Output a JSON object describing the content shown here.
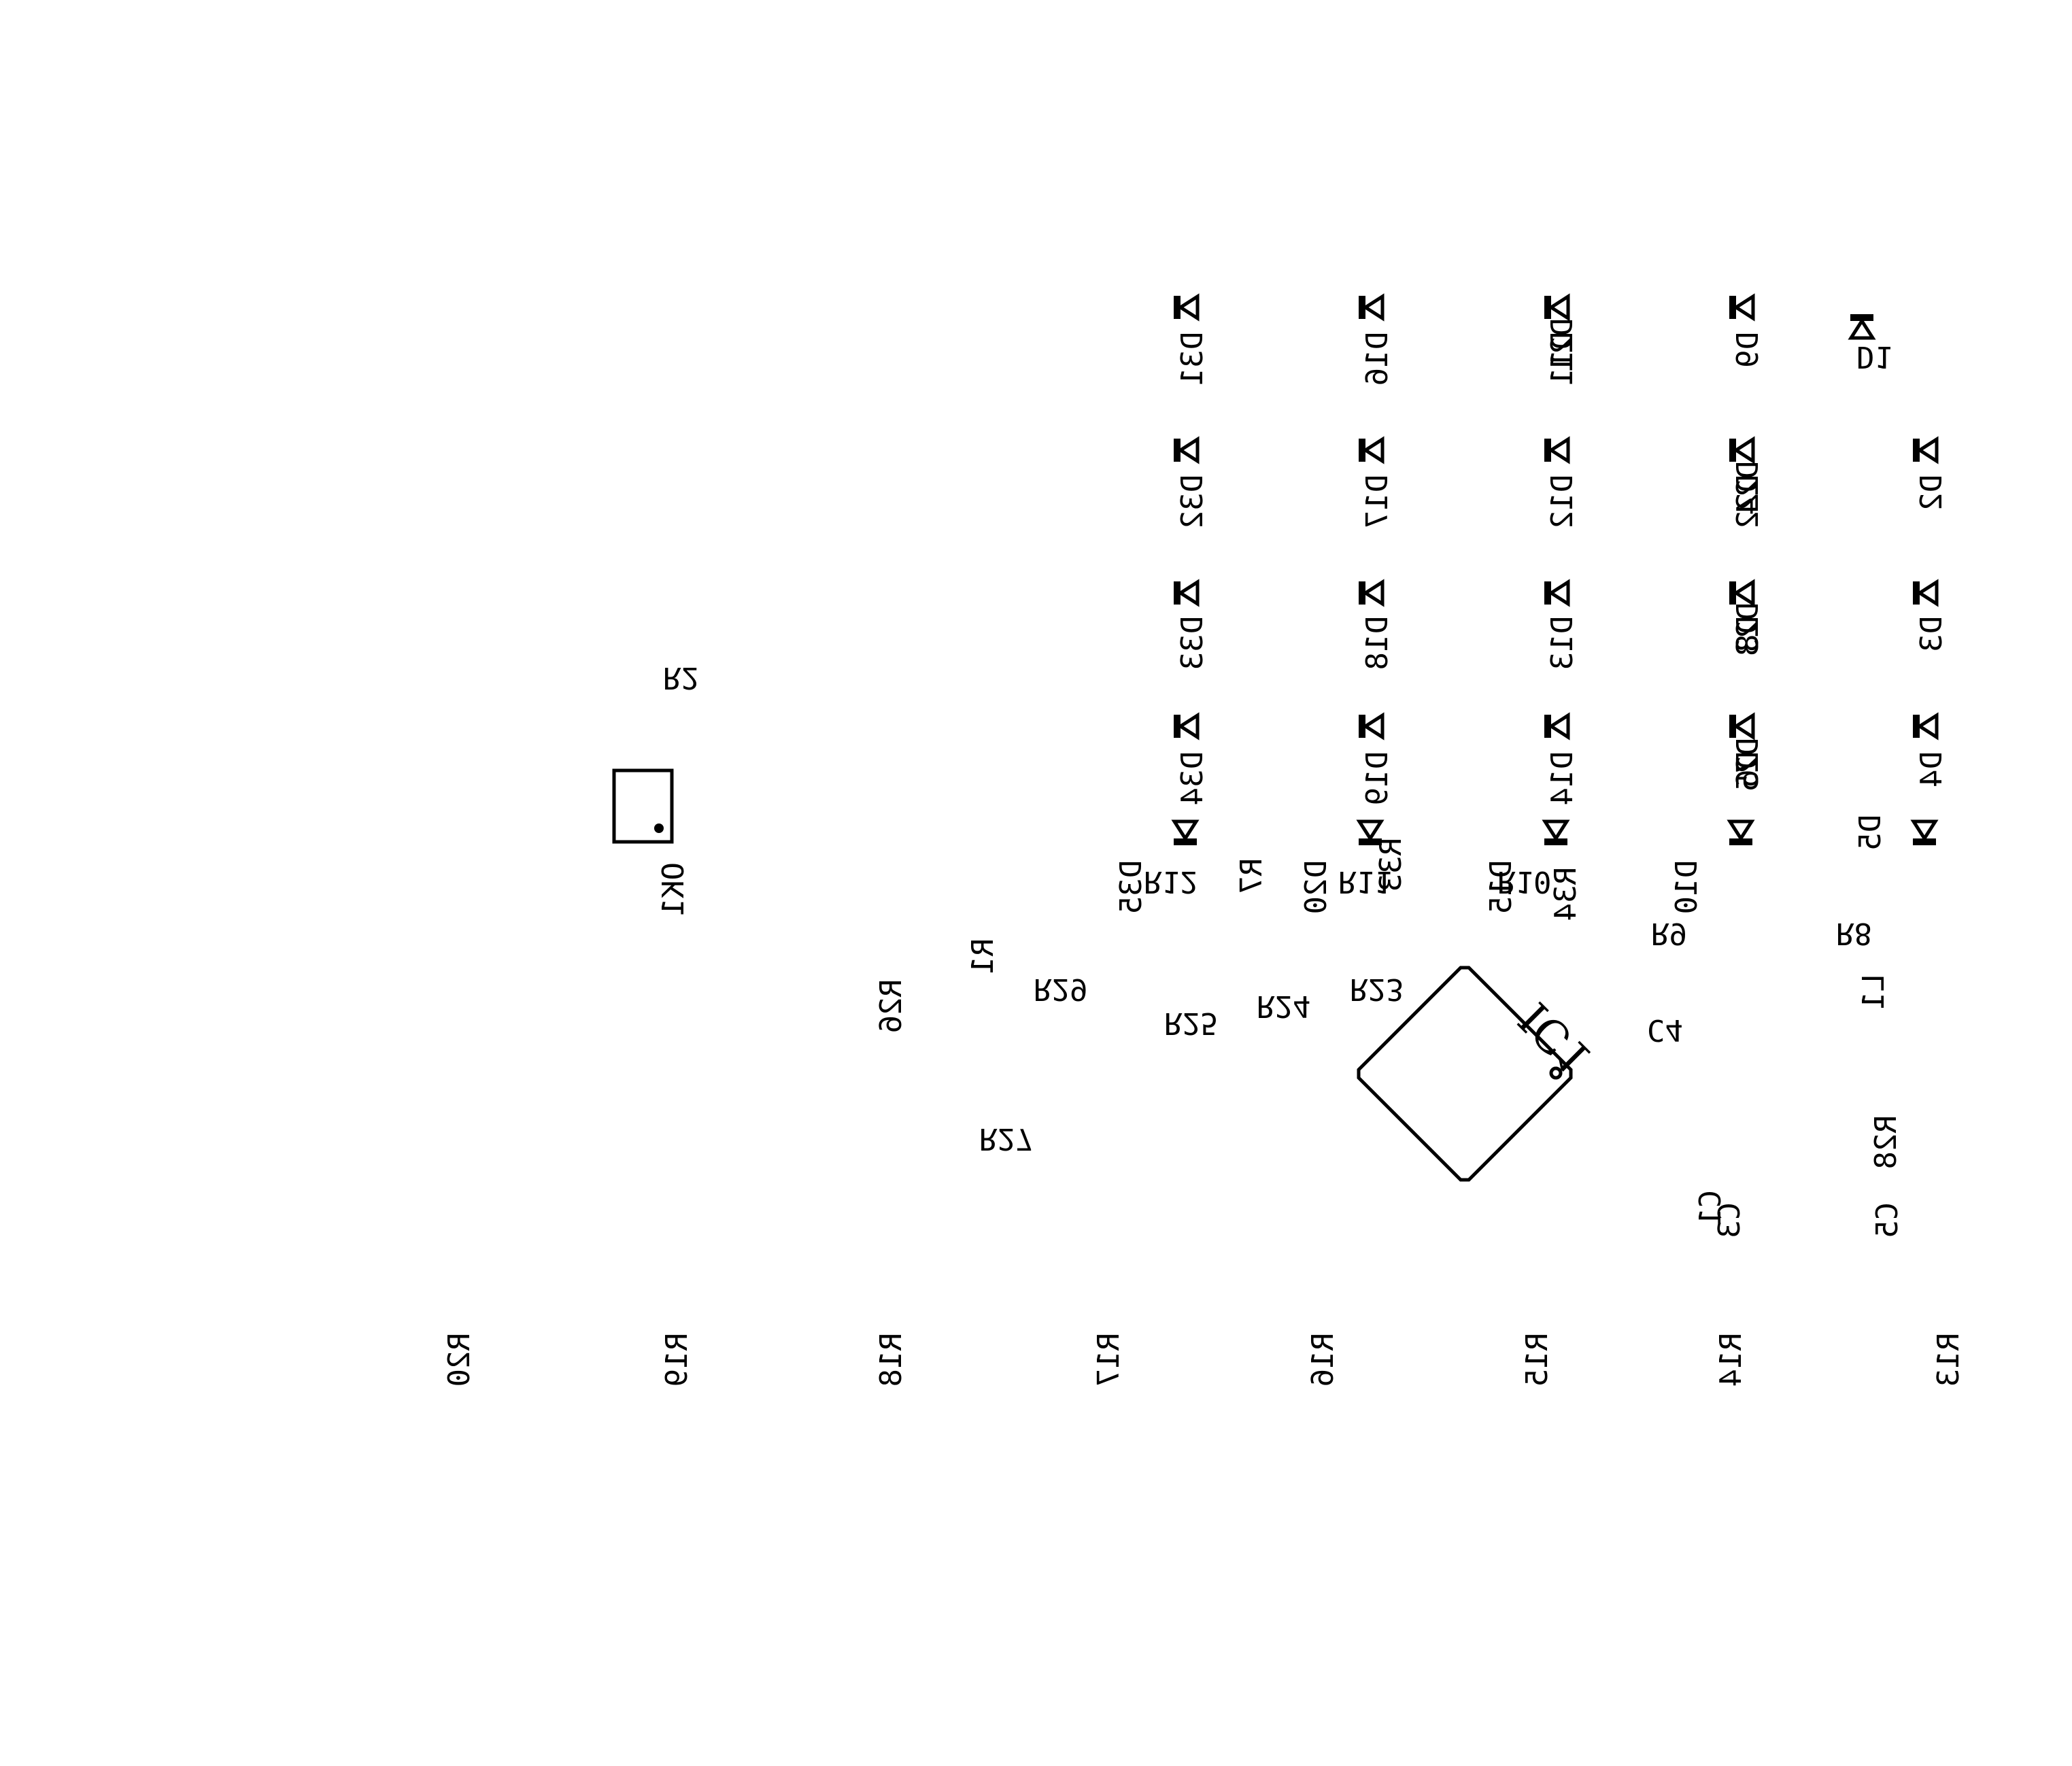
{
  "diodes": [
    {
      "id": "D1",
      "ref": "D1"
    },
    {
      "id": "D2",
      "ref": "D2"
    },
    {
      "id": "D3",
      "ref": "D3"
    },
    {
      "id": "D4",
      "ref": "D4"
    },
    {
      "id": "D5",
      "ref": "D5"
    },
    {
      "id": "D6",
      "ref": "D6"
    },
    {
      "id": "D7",
      "ref": "D7"
    },
    {
      "id": "D8",
      "ref": "D8"
    },
    {
      "id": "D9",
      "ref": "D9"
    },
    {
      "id": "D10",
      "ref": "D10"
    },
    {
      "id": "D11",
      "ref": "D11"
    },
    {
      "id": "D12",
      "ref": "D12"
    },
    {
      "id": "D13",
      "ref": "D13"
    },
    {
      "id": "D14",
      "ref": "D14"
    },
    {
      "id": "D15",
      "ref": "D15"
    },
    {
      "id": "D16",
      "ref": "D16"
    },
    {
      "id": "D17",
      "ref": "D17"
    },
    {
      "id": "D18",
      "ref": "D18"
    },
    {
      "id": "D19",
      "ref": "D19"
    },
    {
      "id": "D20",
      "ref": "D20"
    },
    {
      "id": "D21",
      "ref": "D21"
    },
    {
      "id": "D22",
      "ref": "D22"
    },
    {
      "id": "D23",
      "ref": "D23"
    },
    {
      "id": "D24",
      "ref": "D24"
    },
    {
      "id": "D25",
      "ref": "D25"
    },
    {
      "id": "D31",
      "ref": "D31"
    },
    {
      "id": "D32",
      "ref": "D32"
    },
    {
      "id": "D33",
      "ref": "D33"
    },
    {
      "id": "D34",
      "ref": "D34"
    },
    {
      "id": "D35",
      "ref": "D35"
    }
  ],
  "resistors": [
    {
      "id": "R1",
      "ref": "R1"
    },
    {
      "id": "R2",
      "ref": "R2"
    },
    {
      "id": "R7",
      "ref": "R7"
    },
    {
      "id": "R8",
      "ref": "R8"
    },
    {
      "id": "R9",
      "ref": "R9"
    },
    {
      "id": "R10",
      "ref": "R10"
    },
    {
      "id": "R11",
      "ref": "R11"
    },
    {
      "id": "R12",
      "ref": "R12"
    },
    {
      "id": "R13",
      "ref": "R13"
    },
    {
      "id": "R14",
      "ref": "R14"
    },
    {
      "id": "R15",
      "ref": "R15"
    },
    {
      "id": "R16",
      "ref": "R16"
    },
    {
      "id": "R17",
      "ref": "R17"
    },
    {
      "id": "R18",
      "ref": "R18"
    },
    {
      "id": "R19",
      "ref": "R19"
    },
    {
      "id": "R20",
      "ref": "R20"
    },
    {
      "id": "R23",
      "ref": "R23"
    },
    {
      "id": "R24",
      "ref": "R24"
    },
    {
      "id": "R25",
      "ref": "R25"
    },
    {
      "id": "R26",
      "ref": "R26"
    },
    {
      "id": "R27",
      "ref": "R27"
    },
    {
      "id": "R28",
      "ref": "R28"
    },
    {
      "id": "R29",
      "ref": "R29"
    },
    {
      "id": "R33",
      "ref": "R33"
    },
    {
      "id": "R34",
      "ref": "R34"
    }
  ],
  "capacitors": [
    {
      "id": "C1",
      "ref": "C1"
    },
    {
      "id": "C3",
      "ref": "C3"
    },
    {
      "id": "C4",
      "ref": "C4"
    },
    {
      "id": "C5",
      "ref": "C5"
    }
  ],
  "inductors": [
    {
      "id": "L1",
      "ref": "L1"
    }
  ],
  "ic": {
    "ref": "IC1"
  },
  "connector": {
    "ref": "OK1"
  }
}
